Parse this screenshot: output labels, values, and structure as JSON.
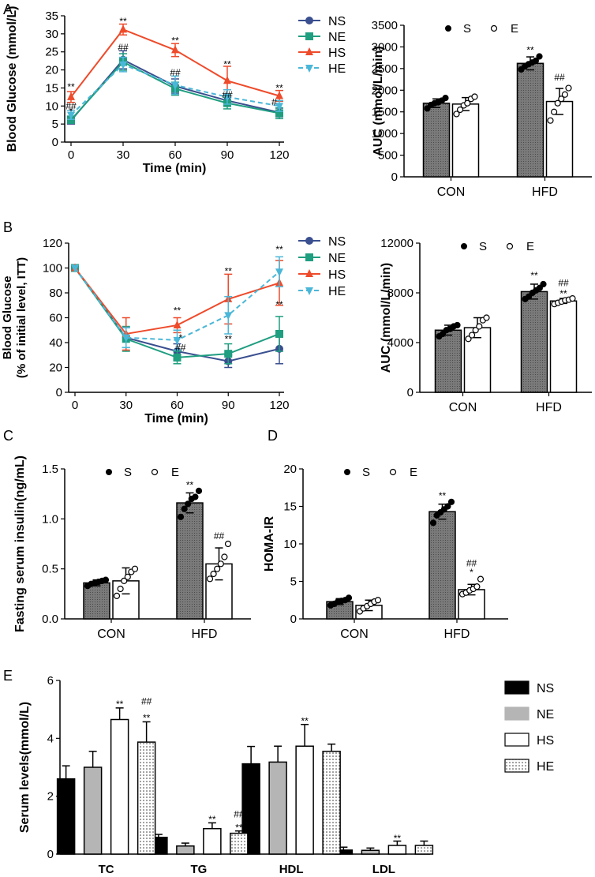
{
  "colors": {
    "NS": "#3a4f8f",
    "NE": "#1f9e80",
    "HS": "#ee4b2b",
    "HE": "#4bb7d8",
    "dark_bar": "#6e6e6e",
    "black_bar": "#000000",
    "grey_bar": "#b5b5b5"
  },
  "panel_letters": {
    "A": "A",
    "B": "B",
    "C": "C",
    "D": "D",
    "E": "E"
  },
  "chart_data": [
    {
      "id": "A_left",
      "type": "line",
      "xlabel": "Time (min)",
      "ylabel": "Blood Glucose (mmol/L)",
      "x": [
        0,
        30,
        60,
        90,
        120
      ],
      "xlim": [
        0,
        120
      ],
      "ylim": [
        0,
        35
      ],
      "xticks": [
        "0",
        "30",
        "60",
        "90",
        "120"
      ],
      "yticks": [
        "0",
        "5",
        "10",
        "15",
        "20",
        "25",
        "30",
        "35"
      ],
      "series": [
        {
          "name": "NS",
          "marker": "circle",
          "dash": false,
          "values": [
            6.0,
            22.8,
            15.5,
            11.5,
            8.2
          ],
          "err": [
            1.0,
            2.5,
            2.0,
            1.5,
            1.2
          ]
        },
        {
          "name": "NE",
          "marker": "square",
          "dash": false,
          "values": [
            6.2,
            22.2,
            14.8,
            10.8,
            8.0
          ],
          "err": [
            1.0,
            2.3,
            1.8,
            1.6,
            1.5
          ]
        },
        {
          "name": "HS",
          "marker": "triangle",
          "dash": false,
          "values": [
            12.5,
            31.2,
            25.5,
            17.0,
            12.8
          ],
          "err": [
            1.5,
            1.5,
            1.8,
            4.0,
            1.5
          ]
        },
        {
          "name": "HE",
          "marker": "tri-down",
          "dash": true,
          "values": [
            7.5,
            21.5,
            15.8,
            12.5,
            10.0
          ],
          "err": [
            1.2,
            2.0,
            2.5,
            2.0,
            1.5
          ]
        }
      ],
      "legend": [
        "NS",
        "NE",
        "HS",
        "HE"
      ],
      "annotations": [
        {
          "x": 0,
          "y": 15.5,
          "text": "**"
        },
        {
          "x": 0,
          "y": 10.2,
          "text": "##"
        },
        {
          "x": 0,
          "y": 8.7,
          "text": "*"
        },
        {
          "x": 30,
          "y": 33.7,
          "text": "**"
        },
        {
          "x": 30,
          "y": 26.5,
          "text": "##"
        },
        {
          "x": 60,
          "y": 28.3,
          "text": "**"
        },
        {
          "x": 60,
          "y": 19.5,
          "text": "##"
        },
        {
          "x": 90,
          "y": 21.8,
          "text": "**"
        },
        {
          "x": 90,
          "y": 13.3,
          "text": "##"
        },
        {
          "x": 120,
          "y": 15.2,
          "text": "**"
        },
        {
          "x": 117,
          "y": 11.3,
          "text": "#"
        }
      ]
    },
    {
      "id": "A_right",
      "type": "bar",
      "xlabel": "",
      "ylabel": "AUC (mmol/L/min)",
      "categories": [
        "CON",
        "HFD"
      ],
      "ylim": [
        0,
        3500
      ],
      "yticks": [
        "0",
        "500",
        "1000",
        "1500",
        "2000",
        "2500",
        "3000",
        "3500"
      ],
      "legend": [
        "S",
        "E"
      ],
      "series": [
        {
          "name": "S",
          "fill": "dark",
          "values": [
            1700,
            2620
          ],
          "err": [
            100,
            150
          ],
          "points": [
            [
              1580,
              1660,
              1700,
              1720,
              1760,
              1820
            ],
            [
              2480,
              2550,
              2600,
              2640,
              2680,
              2780
            ]
          ]
        },
        {
          "name": "E",
          "fill": "white",
          "values": [
            1680,
            1740
          ],
          "err": [
            150,
            300
          ],
          "points": [
            [
              1450,
              1550,
              1650,
              1700,
              1800,
              1850
            ],
            [
              1300,
              1500,
              1700,
              1800,
              1900,
              2050
            ]
          ]
        }
      ],
      "annotations": [
        {
          "group": 1,
          "series": 0,
          "y": 2930,
          "text": "**"
        },
        {
          "group": 1,
          "series": 1,
          "y": 2300,
          "text": "##"
        }
      ]
    },
    {
      "id": "B_left",
      "type": "line",
      "xlabel": "Time (min)",
      "ylabel": "Blood Glucose (% of initial level, ITT)",
      "x": [
        0,
        30,
        60,
        90,
        120
      ],
      "xlim": [
        0,
        120
      ],
      "ylim": [
        0,
        120
      ],
      "xticks": [
        "0",
        "30",
        "60",
        "90",
        "120"
      ],
      "yticks": [
        "0",
        "20",
        "40",
        "60",
        "80",
        "100",
        "120"
      ],
      "series": [
        {
          "name": "NS",
          "marker": "circle",
          "dash": false,
          "values": [
            100,
            44,
            33,
            25,
            35
          ],
          "err": [
            0,
            8,
            6,
            5,
            12
          ]
        },
        {
          "name": "NE",
          "marker": "square",
          "dash": false,
          "values": [
            100,
            43,
            28,
            31,
            47
          ],
          "err": [
            0,
            10,
            5,
            8,
            14
          ]
        },
        {
          "name": "HS",
          "marker": "triangle",
          "dash": false,
          "values": [
            100,
            47,
            54,
            75,
            88
          ],
          "err": [
            0,
            13,
            6,
            20,
            18
          ]
        },
        {
          "name": "HE",
          "marker": "tri-down",
          "dash": true,
          "values": [
            100,
            44,
            42,
            62,
            97
          ],
          "err": [
            0,
            8,
            8,
            15,
            12
          ]
        }
      ],
      "legend": [
        "NS",
        "NE",
        "HS",
        "HE"
      ],
      "annotations": [
        {
          "x": 60,
          "y": 66.5,
          "text": "**"
        },
        {
          "x": 62,
          "y": 44.5,
          "text": "*"
        },
        {
          "x": 62,
          "y": 36.5,
          "text": "##"
        },
        {
          "x": 90,
          "y": 98,
          "text": "**"
        },
        {
          "x": 90,
          "y": 43.5,
          "text": "**"
        },
        {
          "x": 120,
          "y": 115.5,
          "text": "**"
        },
        {
          "x": 120,
          "y": 71,
          "text": "**"
        }
      ]
    },
    {
      "id": "B_right",
      "type": "bar",
      "xlabel": "",
      "ylabel": "AUC (mmol/L/min)",
      "categories": [
        "CON",
        "HFD"
      ],
      "ylim": [
        0,
        12000
      ],
      "yticks": [
        "0",
        "4000",
        "8000",
        "12000"
      ],
      "legend": [
        "S",
        "E"
      ],
      "series": [
        {
          "name": "S",
          "fill": "dark",
          "values": [
            5000,
            8100
          ],
          "err": [
            400,
            600
          ],
          "points": [
            [
              4500,
              4700,
              5000,
              5100,
              5300,
              5400
            ],
            [
              7500,
              7700,
              8000,
              8200,
              8400,
              8700
            ]
          ]
        },
        {
          "name": "E",
          "fill": "white",
          "values": [
            5200,
            7350
          ],
          "err": [
            800,
            200
          ],
          "points": [
            [
              4300,
              4600,
              5000,
              5300,
              5800,
              6000
            ],
            [
              7100,
              7200,
              7300,
              7400,
              7450,
              7550
            ]
          ]
        }
      ],
      "annotations": [
        {
          "group": 1,
          "series": 0,
          "y": 9400,
          "text": "**"
        },
        {
          "group": 1,
          "series": 1,
          "y": 8800,
          "text": "##"
        },
        {
          "group": 1,
          "series": 1,
          "y": 7950,
          "text": "**"
        }
      ]
    },
    {
      "id": "C",
      "type": "bar",
      "xlabel": "",
      "ylabel": "Fasting serum insulin(ng/mL)",
      "categories": [
        "CON",
        "HFD"
      ],
      "ylim": [
        0,
        1.5
      ],
      "yticks": [
        "0.0",
        "0.5",
        "1.0",
        "1.5"
      ],
      "legend": [
        "S",
        "E"
      ],
      "series": [
        {
          "name": "S",
          "fill": "dark",
          "values": [
            0.36,
            1.16
          ],
          "err": [
            0.03,
            0.1
          ],
          "points": [
            [
              0.33,
              0.35,
              0.36,
              0.37,
              0.38,
              0.39
            ],
            [
              1.02,
              1.1,
              1.15,
              1.2,
              1.22,
              1.28
            ]
          ]
        },
        {
          "name": "E",
          "fill": "white",
          "values": [
            0.38,
            0.55
          ],
          "err": [
            0.13,
            0.16
          ],
          "points": [
            [
              0.23,
              0.3,
              0.38,
              0.42,
              0.47,
              0.5
            ],
            [
              0.4,
              0.45,
              0.5,
              0.55,
              0.62,
              0.75
            ]
          ]
        }
      ],
      "annotations": [
        {
          "group": 1,
          "series": 0,
          "y": 1.34,
          "text": "**"
        },
        {
          "group": 1,
          "series": 1,
          "y": 0.83,
          "text": "##"
        }
      ]
    },
    {
      "id": "D",
      "type": "bar",
      "xlabel": "",
      "ylabel": "HOMA-IR",
      "categories": [
        "CON",
        "HFD"
      ],
      "ylim": [
        0,
        20
      ],
      "yticks": [
        "0",
        "5",
        "10",
        "15",
        "20"
      ],
      "legend": [
        "S",
        "E"
      ],
      "series": [
        {
          "name": "S",
          "fill": "dark",
          "values": [
            2.3,
            14.3
          ],
          "err": [
            0.4,
            1.0
          ],
          "points": [
            [
              1.8,
              2.0,
              2.3,
              2.4,
              2.5,
              2.8
            ],
            [
              12.8,
              13.8,
              14.2,
              14.6,
              15.0,
              15.6
            ]
          ]
        },
        {
          "name": "E",
          "fill": "white",
          "values": [
            1.8,
            3.9
          ],
          "err": [
            0.7,
            0.7
          ],
          "points": [
            [
              1.0,
              1.4,
              1.7,
              2.0,
              2.3,
              2.5
            ],
            [
              3.3,
              3.5,
              3.8,
              4.0,
              4.3,
              5.3
            ]
          ]
        }
      ],
      "annotations": [
        {
          "group": 1,
          "series": 0,
          "y": 16.4,
          "text": "**"
        },
        {
          "group": 1,
          "series": 1,
          "y": 7.4,
          "text": "##"
        },
        {
          "group": 1,
          "series": 1,
          "y": 6.2,
          "text": "*"
        }
      ]
    },
    {
      "id": "E",
      "type": "bar",
      "xlabel": "",
      "ylabel": "Serum levels(mmol/L)",
      "categories": [
        "TC",
        "TG",
        "HDL",
        "LDL"
      ],
      "ylim": [
        0,
        6
      ],
      "yticks": [
        "0",
        "2",
        "4",
        "6"
      ],
      "legend": [
        "NS",
        "NE",
        "HS",
        "HE"
      ],
      "series": [
        {
          "name": "NS",
          "fill": "black",
          "values": [
            2.6,
            0.58,
            3.12,
            0.14
          ],
          "err": [
            0.45,
            0.1,
            0.6,
            0.1
          ]
        },
        {
          "name": "NE",
          "fill": "grey",
          "values": [
            3.0,
            0.28,
            3.18,
            0.13
          ],
          "err": [
            0.55,
            0.1,
            0.55,
            0.08
          ]
        },
        {
          "name": "HS",
          "fill": "white",
          "values": [
            4.65,
            0.88,
            3.73,
            0.3
          ],
          "err": [
            0.4,
            0.2,
            0.75,
            0.15
          ]
        },
        {
          "name": "HE",
          "fill": "dotted",
          "values": [
            3.87,
            0.72,
            3.55,
            0.3
          ],
          "err": [
            0.7,
            0.08,
            0.25,
            0.15
          ]
        }
      ],
      "annotations": [
        {
          "group": 0,
          "series": 2,
          "y": 5.18,
          "text": "**"
        },
        {
          "group": 0,
          "series": 3,
          "y": 5.28,
          "text": "##"
        },
        {
          "group": 0,
          "series": 3,
          "y": 4.7,
          "text": "**"
        },
        {
          "group": 1,
          "series": 2,
          "y": 1.2,
          "text": "**"
        },
        {
          "group": 1,
          "series": 3,
          "y": 1.38,
          "text": "##"
        },
        {
          "group": 1,
          "series": 3,
          "y": 0.92,
          "text": "**"
        },
        {
          "group": 2,
          "series": 2,
          "y": 4.6,
          "text": "**"
        },
        {
          "group": 3,
          "series": 2,
          "y": 0.55,
          "text": "**"
        }
      ]
    }
  ]
}
